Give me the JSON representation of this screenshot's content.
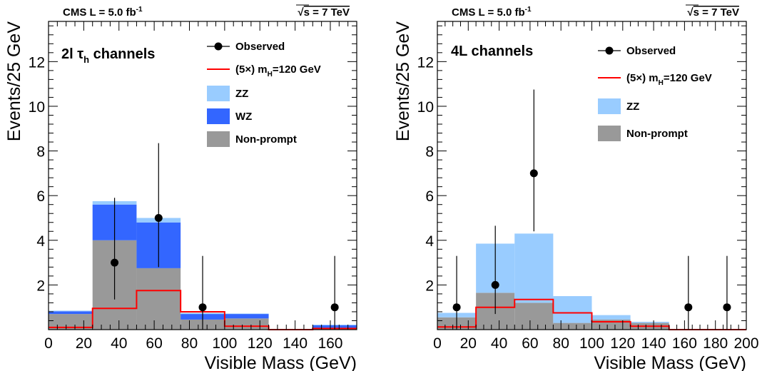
{
  "chart_data": [
    {
      "type": "bar",
      "stacked": true,
      "header_left": "CMS L = 5.0 fb",
      "header_left_sup": "-1",
      "header_right": "s = 7 TeV",
      "header_right_root": "√",
      "channel_label": "2l τ",
      "channel_label_sub": "h",
      "channel_label_suffix": " channels",
      "xlabel": "Visible Mass (GeV)",
      "ylabel": "Events/25 GeV",
      "xlim": [
        0,
        175
      ],
      "ylim": [
        0,
        13.8
      ],
      "xticks": [
        "0",
        "20",
        "40",
        "60",
        "80",
        "100",
        "120",
        "140",
        "160"
      ],
      "yticks": [
        "2",
        "4",
        "6",
        "8",
        "10",
        "12"
      ],
      "bin_edges": [
        0,
        25,
        50,
        75,
        100,
        125,
        150,
        175
      ],
      "series": [
        {
          "name": "Non-prompt",
          "color": "#999999",
          "values": [
            0.7,
            4.0,
            2.75,
            0.45,
            0.5,
            0.0,
            0.05
          ]
        },
        {
          "name": "WZ",
          "color": "#3366ff",
          "values": [
            0.12,
            1.6,
            2.05,
            0.25,
            0.2,
            0.0,
            0.15
          ]
        },
        {
          "name": "ZZ",
          "color": "#99ccff",
          "values": [
            0.03,
            0.15,
            0.2,
            0.05,
            0.02,
            0.0,
            0.02
          ]
        }
      ],
      "signal": {
        "name": "(5×) m",
        "name_sub": "H",
        "name_suffix": "=120 GeV",
        "color": "#ff0000",
        "values": [
          0.1,
          0.95,
          1.75,
          0.8,
          0.15,
          0.0,
          0.05
        ]
      },
      "observed": {
        "name": "Observed",
        "points": [
          {
            "x": 37.5,
            "y": 3,
            "lo": 1.35,
            "hi": 5.9
          },
          {
            "x": 62.5,
            "y": 5,
            "lo": 2.8,
            "hi": 8.35
          },
          {
            "x": 87.5,
            "y": 1,
            "lo": 0.0,
            "hi": 3.3
          },
          {
            "x": 162.5,
            "y": 1,
            "lo": 0.0,
            "hi": 3.3
          }
        ]
      }
    },
    {
      "type": "bar",
      "stacked": true,
      "header_left": "CMS L = 5.0 fb",
      "header_left_sup": "-1",
      "header_right": "s = 7 TeV",
      "header_right_root": "√",
      "channel_label": "4L channels",
      "channel_label_sub": "",
      "channel_label_suffix": "",
      "xlabel": "Visible Mass (GeV)",
      "ylabel": "Events/25 GeV",
      "xlim": [
        0,
        200
      ],
      "ylim": [
        0,
        13.8
      ],
      "xticks": [
        "0",
        "20",
        "40",
        "60",
        "80",
        "100",
        "120",
        "140",
        "160",
        "180",
        "200"
      ],
      "yticks": [
        "2",
        "4",
        "6",
        "8",
        "10",
        "12"
      ],
      "bin_edges": [
        0,
        25,
        50,
        75,
        100,
        125,
        150,
        175,
        200
      ],
      "series": [
        {
          "name": "Non-prompt",
          "color": "#999999",
          "values": [
            0.55,
            1.65,
            1.2,
            0.3,
            0.45,
            0.3,
            0.0,
            0.0
          ]
        },
        {
          "name": "ZZ",
          "color": "#99ccff",
          "values": [
            0.2,
            2.2,
            3.1,
            1.2,
            0.2,
            0.05,
            0.0,
            0.0
          ]
        }
      ],
      "signal": {
        "name": "(5×) m",
        "name_sub": "H",
        "name_suffix": "=120 GeV",
        "color": "#ff0000",
        "values": [
          0.12,
          1.0,
          1.35,
          0.75,
          0.35,
          0.15,
          0.0,
          0.0
        ]
      },
      "observed": {
        "name": "Observed",
        "points": [
          {
            "x": 12.5,
            "y": 1,
            "lo": 0.0,
            "hi": 3.3
          },
          {
            "x": 37.5,
            "y": 2,
            "lo": 0.7,
            "hi": 4.65
          },
          {
            "x": 62.5,
            "y": 7,
            "lo": 4.4,
            "hi": 10.75
          },
          {
            "x": 162.5,
            "y": 1,
            "lo": 0.0,
            "hi": 3.3
          },
          {
            "x": 187.5,
            "y": 1,
            "lo": 0.0,
            "hi": 3.3
          }
        ]
      }
    }
  ]
}
